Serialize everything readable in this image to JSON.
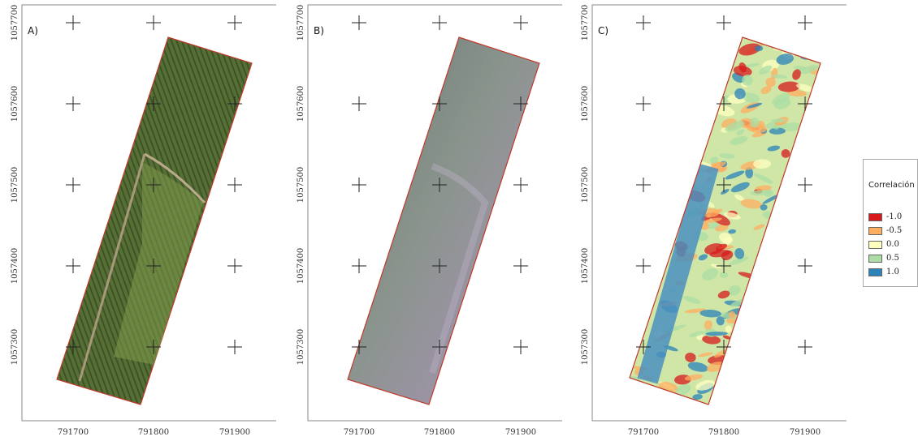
{
  "panels": [
    {
      "id": "a",
      "letter": "A)"
    },
    {
      "id": "b",
      "letter": "B)"
    },
    {
      "id": "c",
      "letter": "C)"
    }
  ],
  "axes": {
    "x_ticks": [
      "791700",
      "791800",
      "791900"
    ],
    "y_ticks": [
      "1057700",
      "1057600",
      "1057500",
      "1057400",
      "1057300"
    ]
  },
  "legend": {
    "title": "Correlación",
    "items": [
      {
        "label": "-1.0",
        "color": "#d7191c"
      },
      {
        "label": "-0.5",
        "color": "#fdae61"
      },
      {
        "label": "0.0",
        "color": "#ffffbf"
      },
      {
        "label": "0.5",
        "color": "#abdda4"
      },
      {
        "label": "1.0",
        "color": "#2b83ba"
      }
    ]
  },
  "colors": {
    "footprint_outline": "#c0392b",
    "orthophoto": "#4f6a34",
    "multispectral": "#7d8a82",
    "frame": "#888888"
  }
}
